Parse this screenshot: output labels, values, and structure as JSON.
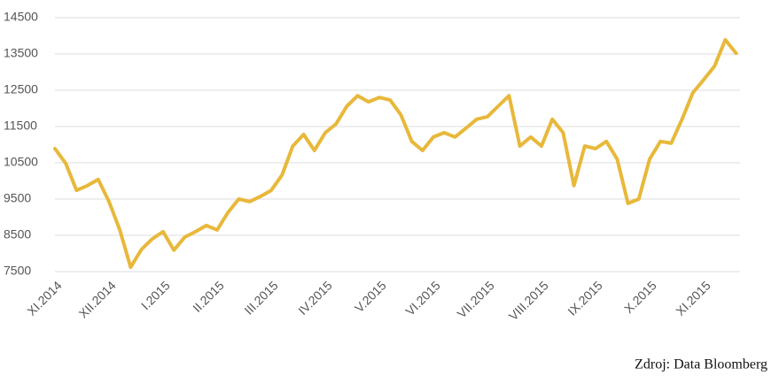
{
  "chart_data": {
    "type": "line",
    "categories": [
      "XI.2014",
      null,
      null,
      null,
      null,
      "XII.2014",
      null,
      null,
      null,
      null,
      "I.2015",
      null,
      null,
      null,
      null,
      "II.2015",
      null,
      null,
      null,
      null,
      "III.2015",
      null,
      null,
      null,
      null,
      "IV.2015",
      null,
      null,
      null,
      null,
      "V.2015",
      null,
      null,
      null,
      null,
      "VI.2015",
      null,
      null,
      null,
      null,
      "VII.2015",
      null,
      null,
      null,
      null,
      "VIII.2015",
      null,
      null,
      null,
      null,
      "IX.2015",
      null,
      null,
      null,
      null,
      "X.2015",
      null,
      null,
      null,
      null,
      "XI.2015",
      null,
      null,
      null
    ],
    "series": [
      {
        "color": "#e8b83a",
        "values": [
          10890,
          10480,
          9740,
          9870,
          10040,
          9430,
          8650,
          7620,
          8110,
          8400,
          8600,
          8090,
          8450,
          8600,
          8770,
          8650,
          9130,
          9500,
          9430,
          9570,
          9740,
          10160,
          10960,
          11280,
          10840,
          11330,
          11570,
          12060,
          12350,
          12180,
          12300,
          12230,
          11820,
          11090,
          10840,
          11210,
          11330,
          11210,
          11450,
          11700,
          11770,
          12060,
          12350,
          10960,
          11210,
          10960,
          11700,
          11330,
          9870,
          10960,
          10890,
          11090,
          10600,
          9380,
          9500,
          10600,
          11090,
          11040,
          11700,
          12430,
          12790,
          13160,
          13890,
          13520
        ]
      }
    ],
    "ylim": [
      7500,
      14500
    ],
    "yticks": [
      7500,
      8500,
      9500,
      10500,
      11500,
      12500,
      13500,
      14500
    ],
    "grid": true,
    "source": "Zdroj: Data Bloomberg"
  }
}
